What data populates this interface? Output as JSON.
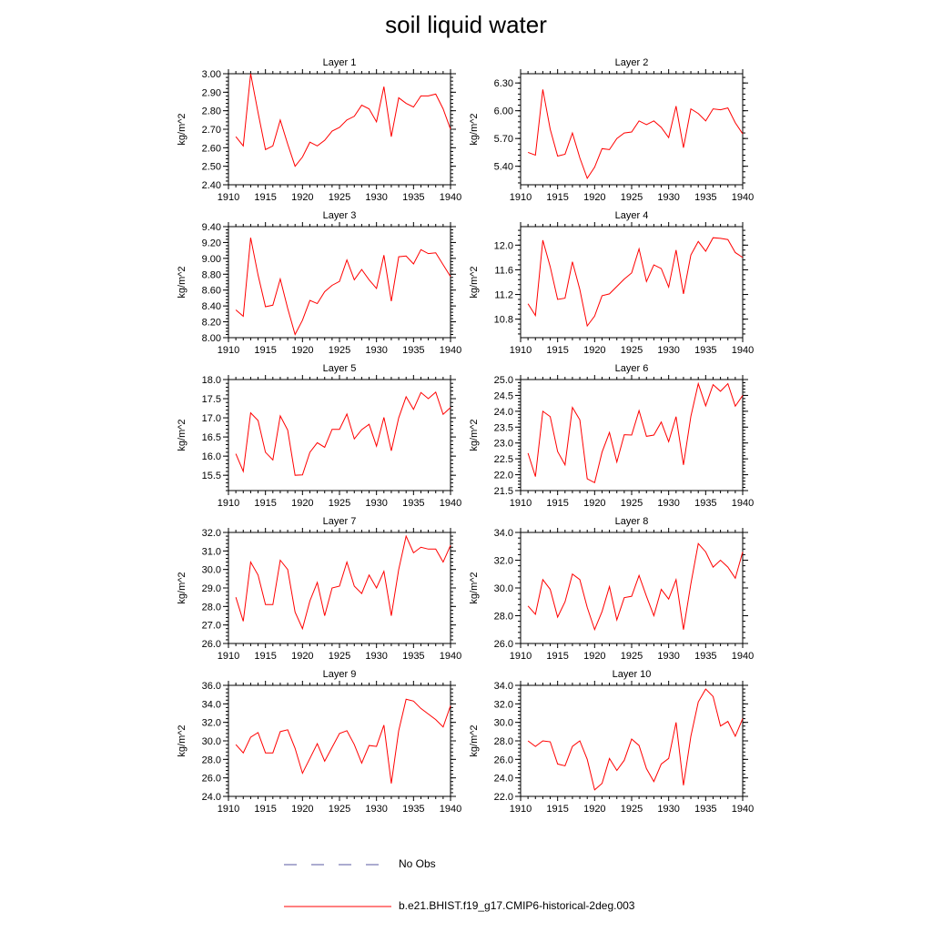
{
  "title": "soil liquid water",
  "legend": {
    "obs_label": "No Obs",
    "model_label": "b.e21.BHIST.f19_g17.CMIP6-historical-2deg.003",
    "obs_color": "#5a5aa0",
    "model_color": "#ff0000"
  },
  "chart_data": [
    {
      "type": "line",
      "title": "Layer 1",
      "ylabel": "kg/m^2",
      "xlim": [
        1910,
        1940
      ],
      "xticks": [
        1910,
        1915,
        1920,
        1925,
        1930,
        1935,
        1940
      ],
      "ylim": [
        2.4,
        3.0
      ],
      "yticks": [
        "2.40",
        "2.50",
        "2.60",
        "2.70",
        "2.80",
        "2.90",
        "3.00"
      ],
      "x": [
        1911,
        1912,
        1913,
        1914,
        1915,
        1916,
        1917,
        1918,
        1919,
        1920,
        1921,
        1922,
        1923,
        1924,
        1925,
        1926,
        1927,
        1928,
        1929,
        1930,
        1931,
        1932,
        1933,
        1934,
        1935,
        1936,
        1937,
        1938,
        1939,
        1940
      ],
      "series": [
        {
          "name": "b.e21.BHIST.f19_g17.CMIP6-historical-2deg.003",
          "values": [
            2.66,
            2.61,
            3.0,
            2.79,
            2.59,
            2.61,
            2.75,
            2.62,
            2.5,
            2.55,
            2.63,
            2.61,
            2.64,
            2.69,
            2.71,
            2.75,
            2.77,
            2.83,
            2.81,
            2.74,
            2.93,
            2.66,
            2.87,
            2.84,
            2.82,
            2.88,
            2.88,
            2.89,
            2.81,
            2.7
          ]
        }
      ]
    },
    {
      "type": "line",
      "title": "Layer 2",
      "ylabel": "kg/m^2",
      "xlim": [
        1910,
        1940
      ],
      "xticks": [
        1910,
        1915,
        1920,
        1925,
        1930,
        1935,
        1940
      ],
      "ylim": [
        5.2,
        6.4
      ],
      "yticks": [
        "5.40",
        "5.70",
        "6.00",
        "6.30"
      ],
      "x": [
        1911,
        1912,
        1913,
        1914,
        1915,
        1916,
        1917,
        1918,
        1919,
        1920,
        1921,
        1922,
        1923,
        1924,
        1925,
        1926,
        1927,
        1928,
        1929,
        1930,
        1931,
        1932,
        1933,
        1934,
        1935,
        1936,
        1937,
        1938,
        1939,
        1940
      ],
      "series": [
        {
          "name": "b.e21.BHIST.f19_g17.CMIP6-historical-2deg.003",
          "values": [
            5.55,
            5.52,
            6.23,
            5.8,
            5.51,
            5.53,
            5.76,
            5.49,
            5.27,
            5.39,
            5.59,
            5.58,
            5.7,
            5.76,
            5.77,
            5.89,
            5.85,
            5.89,
            5.82,
            5.71,
            6.05,
            5.6,
            6.02,
            5.97,
            5.89,
            6.02,
            6.01,
            6.03,
            5.87,
            5.75
          ]
        }
      ]
    },
    {
      "type": "line",
      "title": "Layer 3",
      "ylabel": "kg/m^2",
      "xlim": [
        1910,
        1940
      ],
      "xticks": [
        1910,
        1915,
        1920,
        1925,
        1930,
        1935,
        1940
      ],
      "ylim": [
        8.0,
        9.4
      ],
      "yticks": [
        "8.00",
        "8.20",
        "8.40",
        "8.60",
        "8.80",
        "9.00",
        "9.20",
        "9.40"
      ],
      "x": [
        1911,
        1912,
        1913,
        1914,
        1915,
        1916,
        1917,
        1918,
        1919,
        1920,
        1921,
        1922,
        1923,
        1924,
        1925,
        1926,
        1927,
        1928,
        1929,
        1930,
        1931,
        1932,
        1933,
        1934,
        1935,
        1936,
        1937,
        1938,
        1939,
        1940
      ],
      "series": [
        {
          "name": "b.e21.BHIST.f19_g17.CMIP6-historical-2deg.003",
          "values": [
            8.35,
            8.27,
            9.26,
            8.79,
            8.39,
            8.41,
            8.74,
            8.37,
            8.04,
            8.22,
            8.47,
            8.43,
            8.58,
            8.66,
            8.71,
            8.98,
            8.73,
            8.86,
            8.73,
            8.62,
            9.04,
            8.46,
            9.02,
            9.03,
            8.93,
            9.11,
            9.06,
            9.07,
            8.92,
            8.77
          ]
        }
      ]
    },
    {
      "type": "line",
      "title": "Layer 4",
      "ylabel": "kg/m^2",
      "xlim": [
        1910,
        1940
      ],
      "xticks": [
        1910,
        1915,
        1920,
        1925,
        1930,
        1935,
        1940
      ],
      "ylim": [
        10.5,
        12.3
      ],
      "yticks": [
        "10.8",
        "11.2",
        "11.6",
        "12.0"
      ],
      "x": [
        1911,
        1912,
        1913,
        1914,
        1915,
        1916,
        1917,
        1918,
        1919,
        1920,
        1921,
        1922,
        1923,
        1924,
        1925,
        1926,
        1927,
        1928,
        1929,
        1930,
        1931,
        1932,
        1933,
        1934,
        1935,
        1936,
        1937,
        1938,
        1939,
        1940
      ],
      "series": [
        {
          "name": "b.e21.BHIST.f19_g17.CMIP6-historical-2deg.003",
          "values": [
            11.05,
            10.86,
            12.08,
            11.65,
            11.12,
            11.14,
            11.73,
            11.28,
            10.69,
            10.85,
            11.18,
            11.21,
            11.33,
            11.45,
            11.55,
            11.94,
            11.41,
            11.68,
            11.62,
            11.32,
            11.92,
            11.21,
            11.84,
            12.06,
            11.9,
            12.12,
            12.11,
            12.09,
            11.88,
            11.8
          ]
        }
      ]
    },
    {
      "type": "line",
      "title": "Layer 5",
      "ylabel": "kg/m^2",
      "xlim": [
        1910,
        1940
      ],
      "xticks": [
        1910,
        1915,
        1920,
        1925,
        1930,
        1935,
        1940
      ],
      "ylim": [
        15.1,
        18.0
      ],
      "yticks": [
        "15.5",
        "16.0",
        "16.5",
        "17.0",
        "17.5",
        "18.0"
      ],
      "x": [
        1911,
        1912,
        1913,
        1914,
        1915,
        1916,
        1917,
        1918,
        1919,
        1920,
        1921,
        1922,
        1923,
        1924,
        1925,
        1926,
        1927,
        1928,
        1929,
        1930,
        1931,
        1932,
        1933,
        1934,
        1935,
        1936,
        1937,
        1938,
        1939,
        1940
      ],
      "series": [
        {
          "name": "b.e21.BHIST.f19_g17.CMIP6-historical-2deg.003",
          "values": [
            16.06,
            15.6,
            17.13,
            16.93,
            16.1,
            15.9,
            17.05,
            16.68,
            15.5,
            15.51,
            16.1,
            16.35,
            16.23,
            16.7,
            16.7,
            17.1,
            16.45,
            16.69,
            16.83,
            16.26,
            17.01,
            16.14,
            17.0,
            17.55,
            17.22,
            17.66,
            17.5,
            17.67,
            17.09,
            17.27
          ]
        }
      ]
    },
    {
      "type": "line",
      "title": "Layer 6",
      "ylabel": "kg/m^2",
      "xlim": [
        1910,
        1940
      ],
      "xticks": [
        1910,
        1915,
        1920,
        1925,
        1930,
        1935,
        1940
      ],
      "ylim": [
        21.5,
        25.0
      ],
      "yticks": [
        "21.5",
        "22.0",
        "22.5",
        "23.0",
        "23.5",
        "24.0",
        "24.5",
        "25.0"
      ],
      "x": [
        1911,
        1912,
        1913,
        1914,
        1915,
        1916,
        1917,
        1918,
        1919,
        1920,
        1921,
        1922,
        1923,
        1924,
        1925,
        1926,
        1927,
        1928,
        1929,
        1930,
        1931,
        1932,
        1933,
        1934,
        1935,
        1936,
        1937,
        1938,
        1939,
        1940
      ],
      "series": [
        {
          "name": "b.e21.BHIST.f19_g17.CMIP6-historical-2deg.003",
          "values": [
            22.68,
            21.94,
            24.0,
            23.83,
            22.73,
            22.31,
            24.12,
            23.73,
            21.87,
            21.75,
            22.71,
            23.33,
            22.4,
            23.26,
            23.25,
            24.02,
            23.21,
            23.25,
            23.66,
            23.04,
            23.83,
            22.31,
            23.84,
            24.87,
            24.17,
            24.84,
            24.63,
            24.87,
            24.16,
            24.5
          ]
        }
      ]
    },
    {
      "type": "line",
      "title": "Layer 7",
      "ylabel": "kg/m^2",
      "xlim": [
        1910,
        1940
      ],
      "xticks": [
        1910,
        1915,
        1920,
        1925,
        1930,
        1935,
        1940
      ],
      "ylim": [
        26.0,
        32.0
      ],
      "yticks": [
        "26.0",
        "27.0",
        "28.0",
        "29.0",
        "30.0",
        "31.0",
        "32.0"
      ],
      "x": [
        1911,
        1912,
        1913,
        1914,
        1915,
        1916,
        1917,
        1918,
        1919,
        1920,
        1921,
        1922,
        1923,
        1924,
        1925,
        1926,
        1927,
        1928,
        1929,
        1930,
        1931,
        1932,
        1933,
        1934,
        1935,
        1936,
        1937,
        1938,
        1939,
        1940
      ],
      "series": [
        {
          "name": "b.e21.BHIST.f19_g17.CMIP6-historical-2deg.003",
          "values": [
            28.5,
            27.2,
            30.4,
            29.7,
            28.1,
            28.1,
            30.5,
            30.0,
            27.7,
            26.8,
            28.3,
            29.3,
            27.5,
            29.0,
            29.1,
            30.4,
            29.1,
            28.7,
            29.7,
            29.0,
            29.9,
            27.5,
            30.0,
            31.8,
            30.9,
            31.2,
            31.1,
            31.1,
            30.4,
            31.3
          ]
        }
      ]
    },
    {
      "type": "line",
      "title": "Layer 8",
      "ylabel": "kg/m^2",
      "xlim": [
        1910,
        1940
      ],
      "xticks": [
        1910,
        1915,
        1920,
        1925,
        1930,
        1935,
        1940
      ],
      "ylim": [
        26.0,
        34.0
      ],
      "yticks": [
        "26.0",
        "28.0",
        "30.0",
        "32.0",
        "34.0"
      ],
      "x": [
        1911,
        1912,
        1913,
        1914,
        1915,
        1916,
        1917,
        1918,
        1919,
        1920,
        1921,
        1922,
        1923,
        1924,
        1925,
        1926,
        1927,
        1928,
        1929,
        1930,
        1931,
        1932,
        1933,
        1934,
        1935,
        1936,
        1937,
        1938,
        1939,
        1940
      ],
      "series": [
        {
          "name": "b.e21.BHIST.f19_g17.CMIP6-historical-2deg.003",
          "values": [
            28.7,
            28.1,
            30.6,
            29.9,
            27.9,
            29.0,
            31.0,
            30.6,
            28.6,
            27.0,
            28.3,
            30.1,
            27.7,
            29.3,
            29.4,
            30.9,
            29.4,
            28.0,
            29.9,
            29.2,
            30.6,
            27.0,
            30.3,
            33.2,
            32.6,
            31.5,
            32.0,
            31.5,
            30.7,
            32.6
          ]
        }
      ]
    },
    {
      "type": "line",
      "title": "Layer 9",
      "ylabel": "kg/m^2",
      "xlim": [
        1910,
        1940
      ],
      "xticks": [
        1910,
        1915,
        1920,
        1925,
        1930,
        1935,
        1940
      ],
      "ylim": [
        24.0,
        36.0
      ],
      "yticks": [
        "24.0",
        "26.0",
        "28.0",
        "30.0",
        "32.0",
        "34.0",
        "36.0"
      ],
      "x": [
        1911,
        1912,
        1913,
        1914,
        1915,
        1916,
        1917,
        1918,
        1919,
        1920,
        1921,
        1922,
        1923,
        1924,
        1925,
        1926,
        1927,
        1928,
        1929,
        1930,
        1931,
        1932,
        1933,
        1934,
        1935,
        1936,
        1937,
        1938,
        1939,
        1940
      ],
      "series": [
        {
          "name": "b.e21.BHIST.f19_g17.CMIP6-historical-2deg.003",
          "values": [
            29.6,
            28.7,
            30.4,
            30.9,
            28.7,
            28.7,
            31.0,
            31.2,
            29.2,
            26.5,
            28.1,
            29.7,
            27.8,
            29.3,
            30.8,
            31.1,
            29.6,
            27.6,
            29.5,
            29.4,
            31.7,
            25.4,
            31.1,
            34.5,
            34.3,
            33.5,
            32.9,
            32.3,
            31.5,
            33.8
          ]
        }
      ]
    },
    {
      "type": "line",
      "title": "Layer 10",
      "ylabel": "kg/m^2",
      "xlim": [
        1910,
        1940
      ],
      "xticks": [
        1910,
        1915,
        1920,
        1925,
        1930,
        1935,
        1940
      ],
      "ylim": [
        22.0,
        34.0
      ],
      "yticks": [
        "22.0",
        "24.0",
        "26.0",
        "28.0",
        "30.0",
        "32.0",
        "34.0"
      ],
      "x": [
        1911,
        1912,
        1913,
        1914,
        1915,
        1916,
        1917,
        1918,
        1919,
        1920,
        1921,
        1922,
        1923,
        1924,
        1925,
        1926,
        1927,
        1928,
        1929,
        1930,
        1931,
        1932,
        1933,
        1934,
        1935,
        1936,
        1937,
        1938,
        1939,
        1940
      ],
      "series": [
        {
          "name": "b.e21.BHIST.f19_g17.CMIP6-historical-2deg.003",
          "values": [
            28.0,
            27.4,
            28.0,
            27.9,
            25.5,
            25.3,
            27.4,
            28.0,
            26.0,
            22.7,
            23.4,
            26.1,
            24.8,
            25.9,
            28.2,
            27.5,
            25.0,
            23.6,
            25.5,
            26.1,
            30.0,
            23.2,
            28.5,
            32.2,
            33.6,
            32.8,
            29.6,
            30.1,
            28.5,
            30.4
          ]
        }
      ]
    }
  ]
}
